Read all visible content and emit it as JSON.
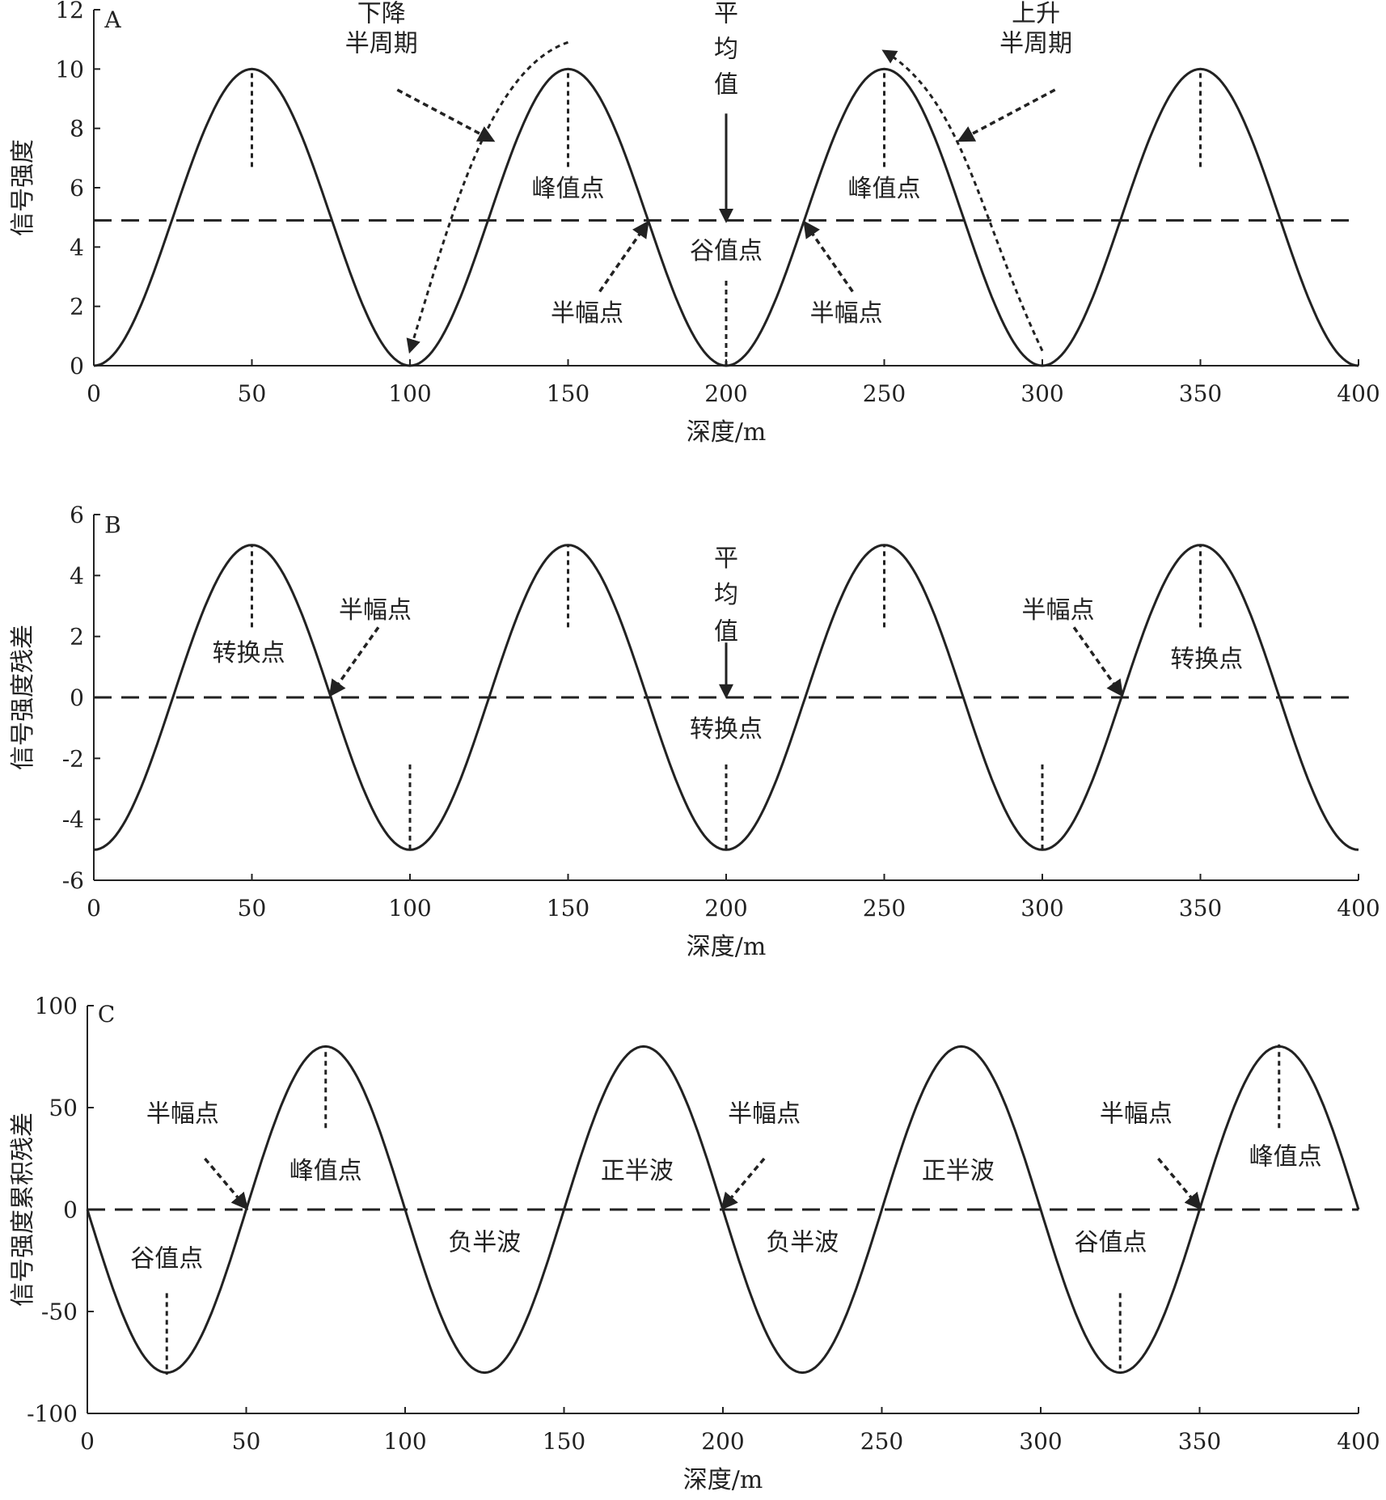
{
  "chart_data": [
    {
      "panel": "A",
      "type": "line",
      "xlabel": "深度/m",
      "ylabel": "信号强度",
      "xlim": [
        0,
        400
      ],
      "ylim": [
        0,
        12
      ],
      "xticks": [
        0,
        50,
        100,
        150,
        200,
        250,
        300,
        350,
        400
      ],
      "yticks": [
        0,
        2,
        4,
        6,
        8,
        10,
        12
      ],
      "grid": false,
      "curve": {
        "kind": "cosine",
        "mean": 5,
        "amplitude": 5,
        "period": 100,
        "peak_at": 50
      },
      "mean_line": 4.9,
      "x": [
        0,
        12.5,
        25,
        37.5,
        50,
        62.5,
        75,
        87.5,
        100,
        112.5,
        125,
        137.5,
        150,
        162.5,
        175,
        187.5,
        200,
        212.5,
        225,
        237.5,
        250,
        262.5,
        275,
        287.5,
        300,
        312.5,
        325,
        337.5,
        350,
        362.5,
        375,
        387.5,
        400
      ],
      "y": [
        0,
        1.5,
        5,
        8.5,
        10,
        8.5,
        5,
        1.5,
        0,
        1.5,
        5,
        8.5,
        10,
        8.5,
        5,
        1.5,
        0,
        1.5,
        5,
        8.5,
        10,
        8.5,
        5,
        1.5,
        0,
        1.5,
        5,
        8.5,
        10,
        8.5,
        5,
        1.5,
        0
      ],
      "vlines": [
        {
          "x": 50,
          "y1": 6.7,
          "y2": 10
        },
        {
          "x": 150,
          "y1": 6.7,
          "y2": 10
        },
        {
          "x": 200,
          "y1": 0,
          "y2": 2.9
        },
        {
          "x": 250,
          "y1": 6.7,
          "y2": 10
        },
        {
          "x": 350,
          "y1": 6.7,
          "y2": 10
        }
      ],
      "arrows": [
        {
          "x1": 200,
          "y1": 8.5,
          "x2": 200,
          "y2": 4.9,
          "style": "solid"
        },
        {
          "x1": 160,
          "y1": 2.5,
          "x2": 175,
          "y2": 4.8,
          "style": "dashed"
        },
        {
          "x1": 240,
          "y1": 2.5,
          "x2": 225,
          "y2": 4.8,
          "style": "dashed"
        },
        {
          "x1": 96,
          "y1": 9.3,
          "x2": 126,
          "y2": 7.6,
          "style": "dashed"
        },
        {
          "x1": 304,
          "y1": 9.3,
          "x2": 274,
          "y2": 7.6,
          "style": "dashed"
        }
      ],
      "curved_arrows": [
        {
          "points": [
            [
              150,
              10.9
            ],
            [
              125,
              10
            ],
            [
              113,
              5
            ],
            [
              100,
              0.5
            ]
          ]
        },
        {
          "points": [
            [
              300,
              0.5
            ],
            [
              280,
              5
            ],
            [
              275,
              9
            ],
            [
              250,
              10.6
            ]
          ]
        }
      ],
      "annotations": [
        {
          "text": "A",
          "x": 6,
          "y": 11.4,
          "anchor": "middle"
        },
        {
          "text": "下降",
          "x": 91,
          "y": 11.6,
          "anchor": "middle"
        },
        {
          "text": "半周期",
          "x": 91,
          "y": 10.6,
          "anchor": "middle"
        },
        {
          "text": "平",
          "x": 200,
          "y": 11.6,
          "anchor": "middle"
        },
        {
          "text": "均",
          "x": 200,
          "y": 10.4,
          "anchor": "middle"
        },
        {
          "text": "值",
          "x": 200,
          "y": 9.2,
          "anchor": "middle"
        },
        {
          "text": "上升",
          "x": 298,
          "y": 11.6,
          "anchor": "middle"
        },
        {
          "text": "半周期",
          "x": 298,
          "y": 10.6,
          "anchor": "middle"
        },
        {
          "text": "峰值点",
          "x": 150,
          "y": 5.7,
          "anchor": "middle"
        },
        {
          "text": "峰值点",
          "x": 250,
          "y": 5.7,
          "anchor": "middle"
        },
        {
          "text": "谷值点",
          "x": 200,
          "y": 3.6,
          "anchor": "middle"
        },
        {
          "text": "半幅点",
          "x": 156,
          "y": 1.5,
          "anchor": "middle"
        },
        {
          "text": "半幅点",
          "x": 238,
          "y": 1.5,
          "anchor": "middle"
        }
      ]
    },
    {
      "panel": "B",
      "type": "line",
      "xlabel": "深度/m",
      "ylabel": "信号强度残差",
      "xlim": [
        0,
        400
      ],
      "ylim": [
        -6,
        6
      ],
      "xticks": [
        0,
        50,
        100,
        150,
        200,
        250,
        300,
        350,
        400
      ],
      "yticks": [
        -6,
        -4,
        -2,
        0,
        2,
        4,
        6
      ],
      "grid": false,
      "curve": {
        "kind": "cosine",
        "mean": 0,
        "amplitude": 5,
        "period": 100,
        "peak_at": 50
      },
      "mean_line": 0,
      "x": [
        0,
        12.5,
        25,
        37.5,
        50,
        62.5,
        75,
        87.5,
        100,
        112.5,
        125,
        137.5,
        150,
        162.5,
        175,
        187.5,
        200,
        212.5,
        225,
        237.5,
        250,
        262.5,
        275,
        287.5,
        300,
        312.5,
        325,
        337.5,
        350,
        362.5,
        375,
        387.5,
        400
      ],
      "y": [
        -5,
        -3.5,
        0,
        3.5,
        5,
        3.5,
        0,
        -3.5,
        -5,
        -3.5,
        0,
        3.5,
        5,
        3.5,
        0,
        -3.5,
        -5,
        -3.5,
        0,
        3.5,
        5,
        3.5,
        0,
        -3.5,
        -5,
        -3.5,
        0,
        3.5,
        5,
        3.5,
        0,
        -3.5,
        -5
      ],
      "vlines": [
        {
          "x": 50,
          "y1": 2.3,
          "y2": 5
        },
        {
          "x": 150,
          "y1": 2.3,
          "y2": 5
        },
        {
          "x": 250,
          "y1": 2.3,
          "y2": 5
        },
        {
          "x": 350,
          "y1": 2.3,
          "y2": 5
        },
        {
          "x": 100,
          "y1": -2.2,
          "y2": -5
        },
        {
          "x": 200,
          "y1": -2.2,
          "y2": -5
        },
        {
          "x": 300,
          "y1": -2.2,
          "y2": -5
        }
      ],
      "arrows": [
        {
          "x1": 200,
          "y1": 1.8,
          "x2": 200,
          "y2": 0.05,
          "style": "solid"
        },
        {
          "x1": 90,
          "y1": 2.3,
          "x2": 75,
          "y2": 0.1,
          "style": "dashed"
        },
        {
          "x1": 310,
          "y1": 2.3,
          "x2": 325,
          "y2": 0.1,
          "style": "dashed"
        }
      ],
      "curved_arrows": [],
      "annotations": [
        {
          "text": "B",
          "x": 6,
          "y": 5.4,
          "anchor": "middle"
        },
        {
          "text": "平",
          "x": 200,
          "y": 4.3,
          "anchor": "middle"
        },
        {
          "text": "均",
          "x": 200,
          "y": 3.1,
          "anchor": "middle"
        },
        {
          "text": "值",
          "x": 200,
          "y": 1.9,
          "anchor": "middle"
        },
        {
          "text": "转换点",
          "x": 49,
          "y": 1.2,
          "anchor": "middle"
        },
        {
          "text": "半幅点",
          "x": 89,
          "y": 2.6,
          "anchor": "middle"
        },
        {
          "text": "转换点",
          "x": 200,
          "y": -1.3,
          "anchor": "middle"
        },
        {
          "text": "半幅点",
          "x": 305,
          "y": 2.6,
          "anchor": "middle"
        },
        {
          "text": "转换点",
          "x": 352,
          "y": 1.0,
          "anchor": "middle"
        }
      ]
    },
    {
      "panel": "C",
      "type": "line",
      "xlabel": "深度/m",
      "ylabel": "信号强度累积残差",
      "xlim": [
        0,
        400
      ],
      "ylim": [
        -100,
        100
      ],
      "xticks": [
        0,
        50,
        100,
        150,
        200,
        250,
        300,
        350,
        400
      ],
      "yticks": [
        -100,
        -50,
        0,
        50,
        100
      ],
      "grid": false,
      "curve": {
        "kind": "sine",
        "mean": 0,
        "amplitude": 80,
        "period": 100,
        "peak_at": 75
      },
      "mean_line": 0,
      "x": [
        0,
        12.5,
        25,
        37.5,
        50,
        62.5,
        75,
        87.5,
        100,
        112.5,
        125,
        137.5,
        150,
        162.5,
        175,
        187.5,
        200,
        212.5,
        225,
        237.5,
        250,
        262.5,
        275,
        287.5,
        300,
        312.5,
        325,
        337.5,
        350,
        362.5,
        375,
        387.5,
        400
      ],
      "y": [
        -5,
        -57,
        -81,
        -57,
        0,
        57,
        78,
        57,
        0,
        -57,
        -80,
        -57,
        0,
        57,
        79,
        57,
        0,
        -57,
        -79,
        -57,
        0,
        57,
        80,
        57,
        0,
        -57,
        -78,
        -57,
        0,
        57,
        81,
        57,
        0
      ],
      "vlines": [
        {
          "x": 75,
          "y1": 40,
          "y2": 78
        },
        {
          "x": 375,
          "y1": 40,
          "y2": 81
        },
        {
          "x": 25,
          "y1": -41,
          "y2": -81
        },
        {
          "x": 325,
          "y1": -41,
          "y2": -78
        }
      ],
      "arrows": [
        {
          "x1": 37,
          "y1": 25,
          "x2": 50,
          "y2": 1,
          "style": "dashed"
        },
        {
          "x1": 213,
          "y1": 25,
          "x2": 200,
          "y2": 1,
          "style": "dashed"
        },
        {
          "x1": 337,
          "y1": 25,
          "x2": 350,
          "y2": 1,
          "style": "dashed"
        }
      ],
      "curved_arrows": [],
      "annotations": [
        {
          "text": "C",
          "x": 6,
          "y": 92,
          "anchor": "middle"
        },
        {
          "text": "半幅点",
          "x": 30,
          "y": 43,
          "anchor": "middle"
        },
        {
          "text": "峰值点",
          "x": 75,
          "y": 15,
          "anchor": "middle"
        },
        {
          "text": "谷值点",
          "x": 25,
          "y": -28,
          "anchor": "middle"
        },
        {
          "text": "负半波",
          "x": 125,
          "y": -20,
          "anchor": "middle"
        },
        {
          "text": "正半波",
          "x": 173,
          "y": 15,
          "anchor": "middle"
        },
        {
          "text": "半幅点",
          "x": 213,
          "y": 43,
          "anchor": "middle"
        },
        {
          "text": "负半波",
          "x": 225,
          "y": -20,
          "anchor": "middle"
        },
        {
          "text": "正半波",
          "x": 274,
          "y": 15,
          "anchor": "middle"
        },
        {
          "text": "谷值点",
          "x": 322,
          "y": -20,
          "anchor": "middle"
        },
        {
          "text": "半幅点",
          "x": 330,
          "y": 43,
          "anchor": "middle"
        },
        {
          "text": "峰值点",
          "x": 377,
          "y": 22,
          "anchor": "middle"
        }
      ]
    }
  ]
}
